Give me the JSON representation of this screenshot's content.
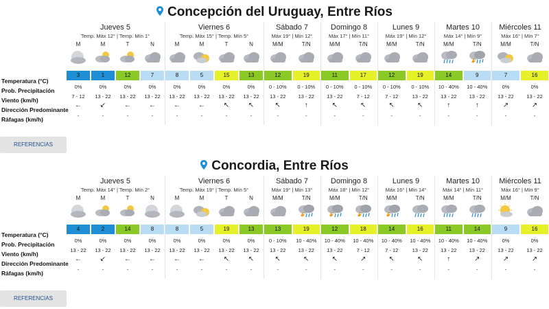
{
  "labels": {
    "temperature": "Temperatura (°C)",
    "precip": "Prob. Precipitación",
    "wind": "Viento (km/h)",
    "direction": "Dirección Predominante",
    "gusts": "Ráfagas (km/h)"
  },
  "button_label": "REFERENCIAS",
  "locations": [
    {
      "title": "Concepción del Uruguay, Entre Ríos",
      "days": [
        {
          "name": "Jueves 5",
          "temps": "Temp. Máx 12° | Temp. Mín 1°",
          "cols": [
            {
              "p": "M",
              "icon": "moon-cloud",
              "t": "3",
              "c": "c-blue",
              "pr": "0%",
              "w": "7 - 12",
              "d": "←",
              "g": "-"
            },
            {
              "p": "M",
              "icon": "partly-sunny",
              "t": "1",
              "c": "c-blue",
              "pr": "0%",
              "w": "13 - 22",
              "d": "↙",
              "g": "-"
            },
            {
              "p": "T",
              "icon": "partly-sunny",
              "t": "12",
              "c": "c-green",
              "pr": "0%",
              "w": "13 - 22",
              "d": "←",
              "g": "-"
            },
            {
              "p": "N",
              "icon": "cloudy",
              "t": "7",
              "c": "c-lblue",
              "pr": "0%",
              "w": "13 - 22",
              "d": "←",
              "g": "-"
            }
          ]
        },
        {
          "name": "Viernes 6",
          "temps": "Temp. Máx 15° | Temp. Mín 5°",
          "cols": [
            {
              "p": "M",
              "icon": "cloudy",
              "t": "8",
              "c": "c-lblue",
              "pr": "0%",
              "w": "13 - 22",
              "d": "←",
              "g": "-"
            },
            {
              "p": "M",
              "icon": "sun-cloud",
              "t": "5",
              "c": "c-lblue",
              "pr": "0%",
              "w": "13 - 22",
              "d": "←",
              "g": "-"
            },
            {
              "p": "T",
              "icon": "cloudy",
              "t": "15",
              "c": "c-lime",
              "pr": "0%",
              "w": "13 - 22",
              "d": "↖",
              "g": "-"
            },
            {
              "p": "N",
              "icon": "cloudy",
              "t": "13",
              "c": "c-green",
              "pr": "0%",
              "w": "13 - 22",
              "d": "↖",
              "g": "-"
            }
          ]
        },
        {
          "name": "Sábado 7",
          "temps": "Máx 19° | Mín 12°",
          "cols": [
            {
              "p": "M/M",
              "icon": "cloudy",
              "t": "12",
              "c": "c-green",
              "pr": "0 - 10%",
              "w": "13 - 22",
              "d": "↖",
              "g": "-"
            },
            {
              "p": "T/N",
              "icon": "cloudy",
              "t": "19",
              "c": "c-lime",
              "pr": "0 - 10%",
              "w": "13 - 22",
              "d": "↑",
              "g": "-"
            }
          ]
        },
        {
          "name": "Domingo 8",
          "temps": "Máx 17° | Mín 11°",
          "cols": [
            {
              "p": "M/M",
              "icon": "cloudy",
              "t": "11",
              "c": "c-green",
              "pr": "0 - 10%",
              "w": "13 - 22",
              "d": "↖",
              "g": "-"
            },
            {
              "p": "T/N",
              "icon": "cloudy",
              "t": "17",
              "c": "c-lime",
              "pr": "0 - 10%",
              "w": "7 - 12",
              "d": "↖",
              "g": "-"
            }
          ]
        },
        {
          "name": "Lunes 9",
          "temps": "Máx 19° | Mín 12°",
          "cols": [
            {
              "p": "M/M",
              "icon": "cloudy",
              "t": "12",
              "c": "c-green",
              "pr": "0 - 10%",
              "w": "7 - 12",
              "d": "↖",
              "g": "-"
            },
            {
              "p": "T/N",
              "icon": "cloudy",
              "t": "19",
              "c": "c-lime",
              "pr": "0 - 10%",
              "w": "13 - 22",
              "d": "↖",
              "g": "-"
            }
          ]
        },
        {
          "name": "Martes 10",
          "temps": "Máx 14° | Mín 9°",
          "cols": [
            {
              "p": "M/M",
              "icon": "rain",
              "t": "14",
              "c": "c-green",
              "pr": "10 - 40%",
              "w": "13 - 22",
              "d": "↑",
              "g": "-"
            },
            {
              "p": "T/N",
              "icon": "storm",
              "t": "9",
              "c": "c-lblue",
              "pr": "10 - 40%",
              "w": "13 - 22",
              "d": "↑",
              "g": "-"
            }
          ]
        },
        {
          "name": "Miércoles 11",
          "temps": "Máx 16° | Mín 7°",
          "cols": [
            {
              "p": "M/M",
              "icon": "sun-cloud",
              "t": "7",
              "c": "c-lblue",
              "pr": "0%",
              "w": "13 - 22",
              "d": "↗",
              "g": "-"
            },
            {
              "p": "T/N",
              "icon": "cloudy",
              "t": "16",
              "c": "c-lime",
              "pr": "0%",
              "w": "13 - 22",
              "d": "↗",
              "g": "-"
            }
          ]
        }
      ]
    },
    {
      "title": "Concordia, Entre Ríos",
      "days": [
        {
          "name": "Jueves 5",
          "temps": "Temp. Máx 14° | Temp. Mín 2°",
          "cols": [
            {
              "p": "M",
              "icon": "moon-cloud",
              "t": "4",
              "c": "c-blue",
              "pr": "0%",
              "w": "13 - 22",
              "d": "←",
              "g": "-"
            },
            {
              "p": "M",
              "icon": "partly-sunny",
              "t": "2",
              "c": "c-blue",
              "pr": "0%",
              "w": "13 - 22",
              "d": "↙",
              "g": "-"
            },
            {
              "p": "T",
              "icon": "partly-sunny",
              "t": "14",
              "c": "c-green",
              "pr": "0%",
              "w": "13 - 22",
              "d": "←",
              "g": "-"
            },
            {
              "p": "N",
              "icon": "moon-cloud",
              "t": "8",
              "c": "c-lblue",
              "pr": "0%",
              "w": "13 - 22",
              "d": "←",
              "g": "-"
            }
          ]
        },
        {
          "name": "Viernes 6",
          "temps": "Temp. Máx 19° | Temp. Mín 5°",
          "cols": [
            {
              "p": "M",
              "icon": "moon-cloud",
              "t": "8",
              "c": "c-lblue",
              "pr": "0%",
              "w": "13 - 22",
              "d": "←",
              "g": "-"
            },
            {
              "p": "M",
              "icon": "sun-cloud",
              "t": "5",
              "c": "c-lblue",
              "pr": "0%",
              "w": "13 - 22",
              "d": "←",
              "g": "-"
            },
            {
              "p": "T",
              "icon": "cloudy",
              "t": "19",
              "c": "c-lime",
              "pr": "0%",
              "w": "13 - 22",
              "d": "↖",
              "g": "-"
            },
            {
              "p": "N",
              "icon": "cloudy",
              "t": "13",
              "c": "c-green",
              "pr": "0%",
              "w": "13 - 22",
              "d": "↖",
              "g": "-"
            }
          ]
        },
        {
          "name": "Sábado 7",
          "temps": "Máx 19° | Mín 13°",
          "cols": [
            {
              "p": "M/M",
              "icon": "cloudy",
              "t": "13",
              "c": "c-green",
              "pr": "0 - 10%",
              "w": "13 - 22",
              "d": "↖",
              "g": "-"
            },
            {
              "p": "T/N",
              "icon": "storm",
              "t": "19",
              "c": "c-lime",
              "pr": "10 - 40%",
              "w": "13 - 22",
              "d": "↖",
              "g": "-"
            }
          ]
        },
        {
          "name": "Domingo 8",
          "temps": "Máx 18° | Mín 12°",
          "cols": [
            {
              "p": "M/M",
              "icon": "storm",
              "t": "12",
              "c": "c-green",
              "pr": "10 - 40%",
              "w": "13 - 22",
              "d": "↖",
              "g": "-"
            },
            {
              "p": "T/N",
              "icon": "storm",
              "t": "18",
              "c": "c-lime",
              "pr": "10 - 40%",
              "w": "7 - 12",
              "d": "↗",
              "g": "-"
            }
          ]
        },
        {
          "name": "Lunes 9",
          "temps": "Máx 16° | Mín 14°",
          "cols": [
            {
              "p": "M/M",
              "icon": "storm",
              "t": "14",
              "c": "c-green",
              "pr": "10 - 40%",
              "w": "7 - 12",
              "d": "↖",
              "g": "-"
            },
            {
              "p": "T/N",
              "icon": "rain",
              "t": "16",
              "c": "c-lime",
              "pr": "10 - 40%",
              "w": "13 - 22",
              "d": "↖",
              "g": "-"
            }
          ]
        },
        {
          "name": "Martes 10",
          "temps": "Máx 14° | Mín 11°",
          "cols": [
            {
              "p": "M/M",
              "icon": "rain",
              "t": "11",
              "c": "c-green",
              "pr": "10 - 40%",
              "w": "13 - 22",
              "d": "↑",
              "g": "-"
            },
            {
              "p": "T/N",
              "icon": "rain",
              "t": "14",
              "c": "c-green",
              "pr": "10 - 40%",
              "w": "13 - 22",
              "d": "↗",
              "g": "-"
            }
          ]
        },
        {
          "name": "Miércoles 11",
          "temps": "Máx 16° | Mín 9°",
          "cols": [
            {
              "p": "M/M",
              "icon": "sunny-cloud",
              "t": "9",
              "c": "c-lblue",
              "pr": "0%",
              "w": "13 - 22",
              "d": "↗",
              "g": "-"
            },
            {
              "p": "T/N",
              "icon": "cloudy",
              "t": "16",
              "c": "c-lime",
              "pr": "0%",
              "w": "13 - 22",
              "d": "↗",
              "g": "-"
            }
          ]
        }
      ]
    }
  ]
}
